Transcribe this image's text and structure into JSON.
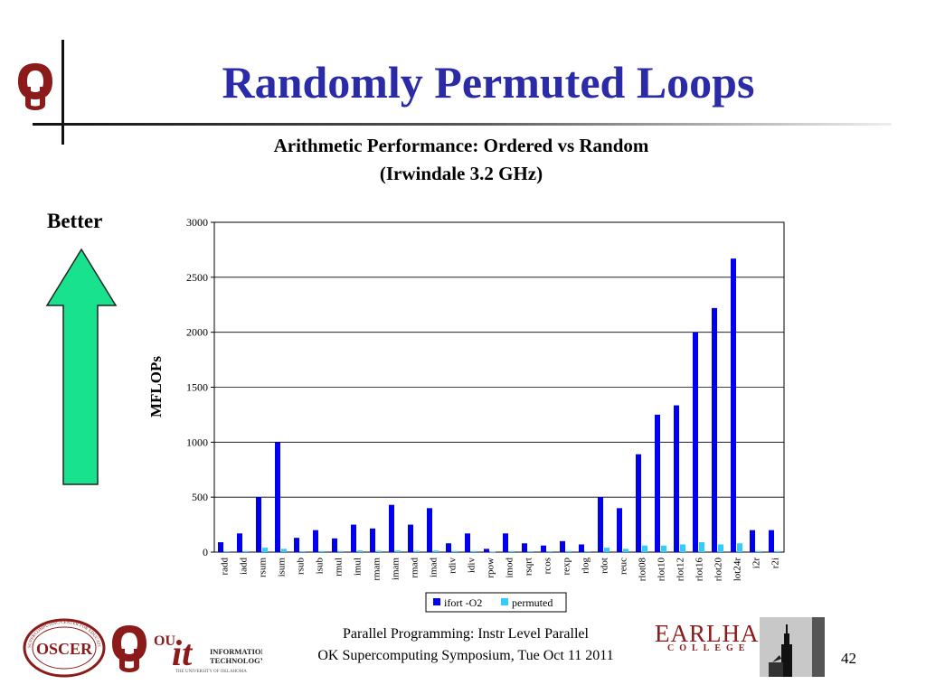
{
  "slide": {
    "title": "Randomly Permuted Loops",
    "better_label": "Better",
    "footer_line1": "Parallel Programming: Instr Level Parallel",
    "footer_line2": "OK Supercomputing Symposium, Tue Oct 11 2011",
    "page_number": "42",
    "logos": {
      "oscer": "OSCER",
      "oscer_ring": "SUPERCOMPUTING CENTER FOR EDUCATION & RESEARCH",
      "ou": "OU",
      "it_mark": "it",
      "it_line1": "INFORMATION",
      "it_line2": "TECHNOLOGY",
      "it_sub": "THE UNIVERSITY OF OKLAHOMA",
      "earlham_name": "EARLHAM",
      "earlham_sub": "COLLEGE"
    },
    "colors": {
      "title": "#2b2ba8",
      "arrow_fill": "#19e28e",
      "series1": "#0000ee",
      "series2": "#33ccff"
    }
  },
  "chart_data": {
    "type": "bar",
    "title_line1": "Arithmetic Performance: Ordered vs Random",
    "title_line2": "(Irwindale 3.2 GHz)",
    "xlabel": "",
    "ylabel": "MFLOPs",
    "ylim": [
      0,
      3000
    ],
    "yticks": [
      0,
      500,
      1000,
      1500,
      2000,
      2500,
      3000
    ],
    "grid": "horizontal",
    "legend_position": "bottom",
    "categories": [
      "radd",
      "iadd",
      "rsum",
      "isum",
      "rsub",
      "isub",
      "rmul",
      "imul",
      "rmam",
      "imam",
      "rmad",
      "imad",
      "rdiv",
      "idiv",
      "rpow",
      "imod",
      "rsqrt",
      "rcos",
      "rexp",
      "rlog",
      "rdot",
      "reuc",
      "rlot08",
      "rlot10",
      "rlot12",
      "rlot16",
      "rlot20",
      "lot24r",
      "i2r",
      "r2i"
    ],
    "series": [
      {
        "name": "ifort -O2",
        "values": [
          90,
          170,
          500,
          1000,
          130,
          200,
          125,
          250,
          215,
          430,
          250,
          400,
          80,
          170,
          30,
          170,
          80,
          60,
          100,
          70,
          500,
          400,
          890,
          1250,
          1335,
          2000,
          2220,
          2670,
          200,
          200
        ]
      },
      {
        "name": "permuted",
        "values": [
          8,
          10,
          40,
          30,
          8,
          10,
          10,
          15,
          12,
          15,
          12,
          15,
          10,
          10,
          5,
          10,
          8,
          8,
          10,
          8,
          40,
          30,
          60,
          60,
          70,
          90,
          70,
          80,
          10,
          10
        ]
      }
    ]
  }
}
